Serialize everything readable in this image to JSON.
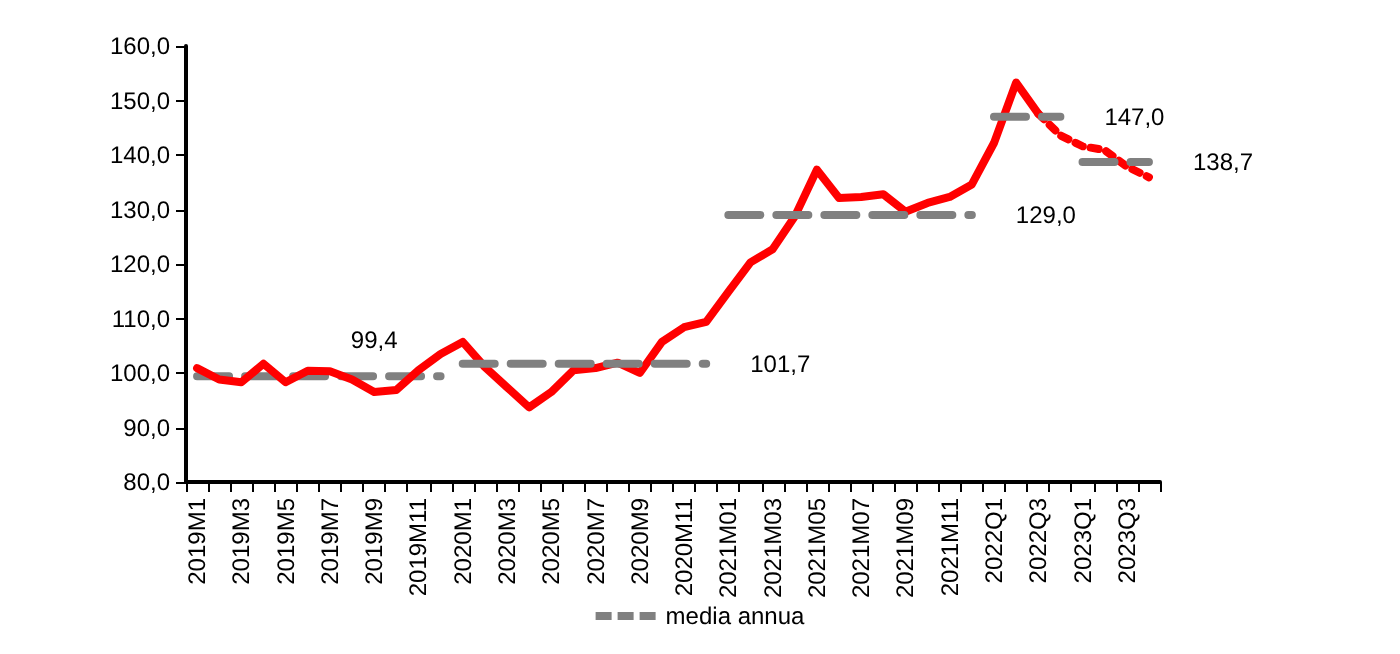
{
  "chart_data": {
    "type": "line",
    "categories": [
      "2019M1",
      null,
      "2019M3",
      null,
      "2019M5",
      null,
      "2019M7",
      null,
      "2019M9",
      null,
      "2019M11",
      null,
      "2020M1",
      null,
      "2020M3",
      null,
      "2020M5",
      null,
      "2020M7",
      null,
      "2020M9",
      null,
      "2020M11",
      null,
      "2021M01",
      null,
      "2021M03",
      null,
      "2021M05",
      null,
      "2021M07",
      null,
      "2021M09",
      null,
      "2021M11",
      null,
      "2022Q1",
      null,
      "2022Q3",
      null,
      "2023Q1",
      null,
      "2023Q3",
      null
    ],
    "ylim": [
      80,
      160
    ],
    "yticks": [
      {
        "value": 80,
        "label": "80,0"
      },
      {
        "value": 90,
        "label": "90,0"
      },
      {
        "value": 100,
        "label": "100,0"
      },
      {
        "value": 110,
        "label": "110,0"
      },
      {
        "value": 120,
        "label": "120,0"
      },
      {
        "value": 130,
        "label": "130,0"
      },
      {
        "value": 140,
        "label": "140,0"
      },
      {
        "value": 150,
        "label": "150,0"
      },
      {
        "value": 160,
        "label": "160,0"
      }
    ],
    "grid": false,
    "legend": "bottom",
    "marker": "none",
    "series": [
      {
        "color": "#ff0000",
        "line_style": "solid",
        "values": [
          100.9,
          98.8,
          98.3,
          101.7,
          98.3,
          100.4,
          100.3,
          98.8,
          96.5,
          96.9,
          100.5,
          103.5,
          105.7,
          101.1,
          97.4,
          93.7,
          96.5,
          100.5,
          100.9,
          101.9,
          100.0,
          105.7,
          108.4,
          109.4,
          114.9,
          120.3,
          122.7,
          128.7,
          137.3,
          132.1,
          132.3,
          132.8,
          129.6,
          131.2,
          132.3,
          134.6,
          142.2,
          153.3,
          147.6,
          null,
          null,
          null,
          null,
          null
        ]
      },
      {
        "color": "#ff0000",
        "line_style": "dotted",
        "values": [
          null,
          null,
          null,
          null,
          null,
          null,
          null,
          null,
          null,
          null,
          null,
          null,
          null,
          null,
          null,
          null,
          null,
          null,
          null,
          null,
          null,
          null,
          null,
          null,
          null,
          null,
          null,
          null,
          null,
          null,
          null,
          null,
          null,
          null,
          null,
          null,
          null,
          null,
          147.6,
          143.6,
          141.6,
          140.9,
          137.9,
          135.9
        ]
      },
      {
        "name": "media annua",
        "color": "#808080",
        "line_style": "dashed",
        "values": [
          99.4,
          99.4,
          99.4,
          99.4,
          99.4,
          99.4,
          99.4,
          99.4,
          99.4,
          99.4,
          99.4,
          99.4,
          null,
          null,
          null,
          null,
          null,
          null,
          null,
          null,
          null,
          null,
          null,
          null,
          null,
          null,
          null,
          null,
          null,
          null,
          null,
          null,
          null,
          null,
          null,
          null,
          null,
          null,
          null,
          null,
          null,
          null,
          null,
          null
        ],
        "value_labels": [
          null,
          null,
          null,
          null,
          null,
          null,
          null,
          null,
          "99,4",
          null,
          null,
          null,
          null,
          null,
          null,
          null,
          null,
          null,
          null,
          null,
          null,
          null,
          null,
          null,
          null,
          null,
          null,
          null,
          null,
          null,
          null,
          null,
          null,
          null,
          null,
          null,
          null,
          null,
          null,
          null,
          null,
          null,
          null,
          null
        ]
      },
      {
        "color": "#808080",
        "line_style": "dashed",
        "values": [
          null,
          null,
          null,
          null,
          null,
          null,
          null,
          null,
          null,
          null,
          null,
          null,
          101.7,
          101.7,
          101.7,
          101.7,
          101.7,
          101.7,
          101.7,
          101.7,
          101.7,
          101.7,
          101.7,
          101.7,
          null,
          null,
          null,
          null,
          null,
          null,
          null,
          null,
          null,
          null,
          null,
          null,
          null,
          null,
          null,
          null,
          null,
          null,
          null,
          null
        ],
        "value_labels": [
          null,
          null,
          null,
          null,
          null,
          null,
          null,
          null,
          null,
          null,
          null,
          null,
          null,
          null,
          null,
          null,
          null,
          null,
          null,
          null,
          null,
          null,
          null,
          "101,7",
          null,
          null,
          null,
          null,
          null,
          null,
          null,
          null,
          null,
          null,
          null,
          null,
          null,
          null,
          null,
          null,
          null,
          null,
          null,
          null
        ]
      },
      {
        "color": "#808080",
        "line_style": "dashed",
        "values": [
          null,
          null,
          null,
          null,
          null,
          null,
          null,
          null,
          null,
          null,
          null,
          null,
          null,
          null,
          null,
          null,
          null,
          null,
          null,
          null,
          null,
          null,
          null,
          null,
          129.0,
          129.0,
          129.0,
          129.0,
          129.0,
          129.0,
          129.0,
          129.0,
          129.0,
          129.0,
          129.0,
          129.0,
          null,
          null,
          null,
          null,
          null,
          null,
          null,
          null
        ],
        "value_labels": [
          null,
          null,
          null,
          null,
          null,
          null,
          null,
          null,
          null,
          null,
          null,
          null,
          null,
          null,
          null,
          null,
          null,
          null,
          null,
          null,
          null,
          null,
          null,
          null,
          null,
          null,
          null,
          null,
          null,
          null,
          null,
          null,
          null,
          null,
          null,
          "129,0",
          null,
          null,
          null,
          null,
          null,
          null,
          null,
          null
        ]
      },
      {
        "color": "#808080",
        "line_style": "dashed",
        "values": [
          null,
          null,
          null,
          null,
          null,
          null,
          null,
          null,
          null,
          null,
          null,
          null,
          null,
          null,
          null,
          null,
          null,
          null,
          null,
          null,
          null,
          null,
          null,
          null,
          null,
          null,
          null,
          null,
          null,
          null,
          null,
          null,
          null,
          null,
          null,
          null,
          147.0,
          147.0,
          147.0,
          147.0,
          null,
          null,
          null,
          null
        ],
        "value_labels": [
          null,
          null,
          null,
          null,
          null,
          null,
          null,
          null,
          null,
          null,
          null,
          null,
          null,
          null,
          null,
          null,
          null,
          null,
          null,
          null,
          null,
          null,
          null,
          null,
          null,
          null,
          null,
          null,
          null,
          null,
          null,
          null,
          null,
          null,
          null,
          null,
          null,
          null,
          null,
          "147,0",
          null,
          null,
          null,
          null
        ]
      },
      {
        "color": "#808080",
        "line_style": "dashed",
        "values": [
          null,
          null,
          null,
          null,
          null,
          null,
          null,
          null,
          null,
          null,
          null,
          null,
          null,
          null,
          null,
          null,
          null,
          null,
          null,
          null,
          null,
          null,
          null,
          null,
          null,
          null,
          null,
          null,
          null,
          null,
          null,
          null,
          null,
          null,
          null,
          null,
          null,
          null,
          null,
          null,
          138.7,
          138.7,
          138.7,
          138.7
        ],
        "value_labels": [
          null,
          null,
          null,
          null,
          null,
          null,
          null,
          null,
          null,
          null,
          null,
          null,
          null,
          null,
          null,
          null,
          null,
          null,
          null,
          null,
          null,
          null,
          null,
          null,
          null,
          null,
          null,
          null,
          null,
          null,
          null,
          null,
          null,
          null,
          null,
          null,
          null,
          null,
          null,
          null,
          null,
          null,
          null,
          "138,7"
        ]
      }
    ]
  }
}
